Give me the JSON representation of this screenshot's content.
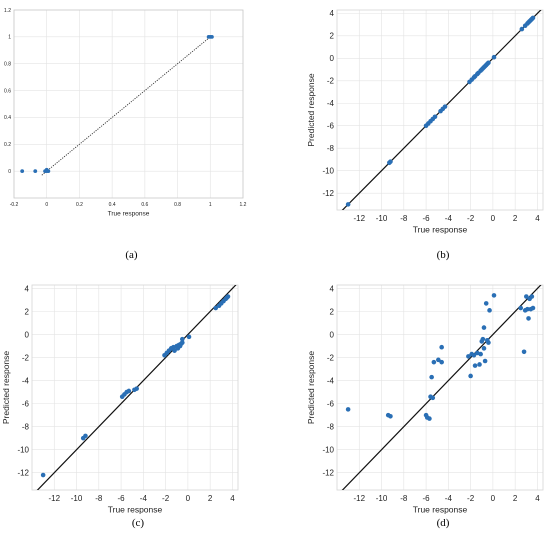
{
  "chart_data": [
    {
      "id": "a",
      "type": "scatter",
      "caption": "(a)",
      "xlabel": "True response",
      "ylabel": "Predicted response",
      "xlim": [
        -0.2,
        1.2
      ],
      "ylim": [
        -0.2,
        1.2
      ],
      "xticks": [
        -0.2,
        0,
        0.2,
        0.4,
        0.6,
        0.8,
        1,
        1.2
      ],
      "yticks": [
        0,
        0.2,
        0.4,
        0.6,
        0.8,
        1,
        1.2
      ],
      "grid": true,
      "reference_line": {
        "style": "dotted",
        "from": [
          -0.03,
          -0.03
        ],
        "to": [
          1,
          1
        ]
      },
      "points": [
        [
          -0.15,
          0
        ],
        [
          -0.07,
          0
        ],
        [
          -0.01,
          0
        ],
        [
          0,
          0
        ],
        [
          0.01,
          0
        ],
        [
          0,
          0.01
        ],
        [
          1,
          1
        ],
        [
          0.99,
          1
        ],
        [
          1.01,
          1
        ]
      ],
      "colors": {
        "points": "#2a6fb5",
        "line": "#333333"
      }
    },
    {
      "id": "b",
      "type": "scatter",
      "caption": "(b)",
      "xlabel": "True response",
      "ylabel": "Predicted response",
      "xlim": [
        -14,
        4.5
      ],
      "ylim": [
        -13.5,
        4.3
      ],
      "xticks": [
        -12,
        -10,
        -8,
        -6,
        -4,
        -2,
        0,
        2,
        4
      ],
      "yticks": [
        -12,
        -10,
        -8,
        -6,
        -4,
        -2,
        0,
        2,
        4
      ],
      "grid": true,
      "reference_line": {
        "style": "solid",
        "from": [
          -14,
          -14
        ],
        "to": [
          4.5,
          4.5
        ]
      },
      "points": [
        [
          -13,
          -13
        ],
        [
          -9.3,
          -9.3
        ],
        [
          -9.2,
          -9.2
        ],
        [
          -6,
          -6
        ],
        [
          -5.8,
          -5.8
        ],
        [
          -5.6,
          -5.6
        ],
        [
          -5.4,
          -5.4
        ],
        [
          -5.2,
          -5.2
        ],
        [
          -4.7,
          -4.7
        ],
        [
          -4.5,
          -4.5
        ],
        [
          -4.3,
          -4.3
        ],
        [
          -2.1,
          -2.1
        ],
        [
          -1.9,
          -1.9
        ],
        [
          -1.7,
          -1.7
        ],
        [
          -1.6,
          -1.6
        ],
        [
          -1.4,
          -1.4
        ],
        [
          -1.3,
          -1.3
        ],
        [
          -1.1,
          -1.1
        ],
        [
          -1,
          -1
        ],
        [
          -0.9,
          -0.9
        ],
        [
          -0.8,
          -0.8
        ],
        [
          -0.7,
          -0.7
        ],
        [
          -0.6,
          -0.6
        ],
        [
          -0.5,
          -0.5
        ],
        [
          -0.4,
          -0.4
        ],
        [
          0.1,
          0.1
        ],
        [
          2.6,
          2.6
        ],
        [
          2.9,
          2.9
        ],
        [
          3.1,
          3.1
        ],
        [
          3.2,
          3.2
        ],
        [
          3.3,
          3.3
        ],
        [
          3.4,
          3.4
        ],
        [
          3.5,
          3.5
        ],
        [
          3.6,
          3.6
        ]
      ],
      "colors": {
        "points": "#2a6fb5",
        "line": "#111111"
      }
    },
    {
      "id": "c",
      "type": "scatter",
      "caption": "(c)",
      "xlabel": "True response",
      "ylabel": "Predicted response",
      "xlim": [
        -14,
        4.5
      ],
      "ylim": [
        -13.5,
        4.3
      ],
      "xticks": [
        -12,
        -10,
        -8,
        -6,
        -4,
        -2,
        0,
        2,
        4
      ],
      "yticks": [
        -12,
        -10,
        -8,
        -6,
        -4,
        -2,
        0,
        2,
        4
      ],
      "grid": true,
      "reference_line": {
        "style": "solid",
        "from": [
          -14,
          -14
        ],
        "to": [
          4.5,
          4.5
        ]
      },
      "points": [
        [
          -13,
          -12.2
        ],
        [
          -9.4,
          -9
        ],
        [
          -9.2,
          -8.8
        ],
        [
          -5.9,
          -5.4
        ],
        [
          -5.7,
          -5.2
        ],
        [
          -5.5,
          -5
        ],
        [
          -5.3,
          -4.9
        ],
        [
          -4.8,
          -4.8
        ],
        [
          -4.6,
          -4.7
        ],
        [
          -2.1,
          -1.8
        ],
        [
          -1.9,
          -1.6
        ],
        [
          -1.7,
          -1.4
        ],
        [
          -1.5,
          -1.2
        ],
        [
          -1.3,
          -1.1
        ],
        [
          -1.2,
          -1.4
        ],
        [
          -1,
          -1
        ],
        [
          -0.9,
          -1.2
        ],
        [
          -0.8,
          -0.9
        ],
        [
          -0.7,
          -1
        ],
        [
          -0.6,
          -0.8
        ],
        [
          -0.5,
          -0.7
        ],
        [
          -0.5,
          -0.4
        ],
        [
          0.1,
          -0.2
        ],
        [
          2.5,
          2.3
        ],
        [
          2.8,
          2.5
        ],
        [
          3,
          2.7
        ],
        [
          3.2,
          2.9
        ],
        [
          3.4,
          3.1
        ],
        [
          3.5,
          3.2
        ],
        [
          3.6,
          3.3
        ]
      ],
      "colors": {
        "points": "#2a6fb5",
        "line": "#111111"
      }
    },
    {
      "id": "d",
      "type": "scatter",
      "caption": "(d)",
      "xlabel": "True response",
      "ylabel": "Predicted response",
      "xlim": [
        -14,
        4.5
      ],
      "ylim": [
        -13.5,
        4.3
      ],
      "xticks": [
        -12,
        -10,
        -8,
        -6,
        -4,
        -2,
        0,
        2,
        4
      ],
      "yticks": [
        -12,
        -10,
        -8,
        -6,
        -4,
        -2,
        0,
        2,
        4
      ],
      "grid": true,
      "reference_line": {
        "style": "solid",
        "from": [
          -14,
          -14
        ],
        "to": [
          4.5,
          4.5
        ]
      },
      "points": [
        [
          -13,
          -6.5
        ],
        [
          -9.4,
          -7
        ],
        [
          -9.2,
          -7.1
        ],
        [
          -6,
          -7
        ],
        [
          -5.9,
          -7.2
        ],
        [
          -5.7,
          -7.3
        ],
        [
          -5.6,
          -5.4
        ],
        [
          -5.4,
          -5.5
        ],
        [
          -5.5,
          -3.7
        ],
        [
          -5.3,
          -2.4
        ],
        [
          -4.9,
          -2.2
        ],
        [
          -4.6,
          -1.1
        ],
        [
          -4.6,
          -2.4
        ],
        [
          -2.2,
          -1.9
        ],
        [
          -2,
          -3.6
        ],
        [
          -1.9,
          -1.7
        ],
        [
          -1.7,
          -1.8
        ],
        [
          -1.6,
          -2.7
        ],
        [
          -1.4,
          -1.6
        ],
        [
          -1.2,
          -2.6
        ],
        [
          -1.1,
          -1.7
        ],
        [
          -1,
          -0.6
        ],
        [
          -0.9,
          -0.4
        ],
        [
          -0.8,
          -1.2
        ],
        [
          -0.8,
          0.6
        ],
        [
          -0.7,
          -2.3
        ],
        [
          -0.6,
          2.7
        ],
        [
          -0.5,
          -0.5
        ],
        [
          -0.4,
          -0.7
        ],
        [
          -0.3,
          2.1
        ],
        [
          0.1,
          3.4
        ],
        [
          2.5,
          2.3
        ],
        [
          2.8,
          -1.5
        ],
        [
          2.9,
          2.1
        ],
        [
          3,
          3.3
        ],
        [
          3.1,
          2.2
        ],
        [
          3.2,
          1.4
        ],
        [
          3.3,
          3.1
        ],
        [
          3.4,
          2.2
        ],
        [
          3.5,
          3.3
        ],
        [
          3.6,
          2.3
        ]
      ],
      "colors": {
        "points": "#2a6fb5",
        "line": "#111111"
      }
    }
  ]
}
